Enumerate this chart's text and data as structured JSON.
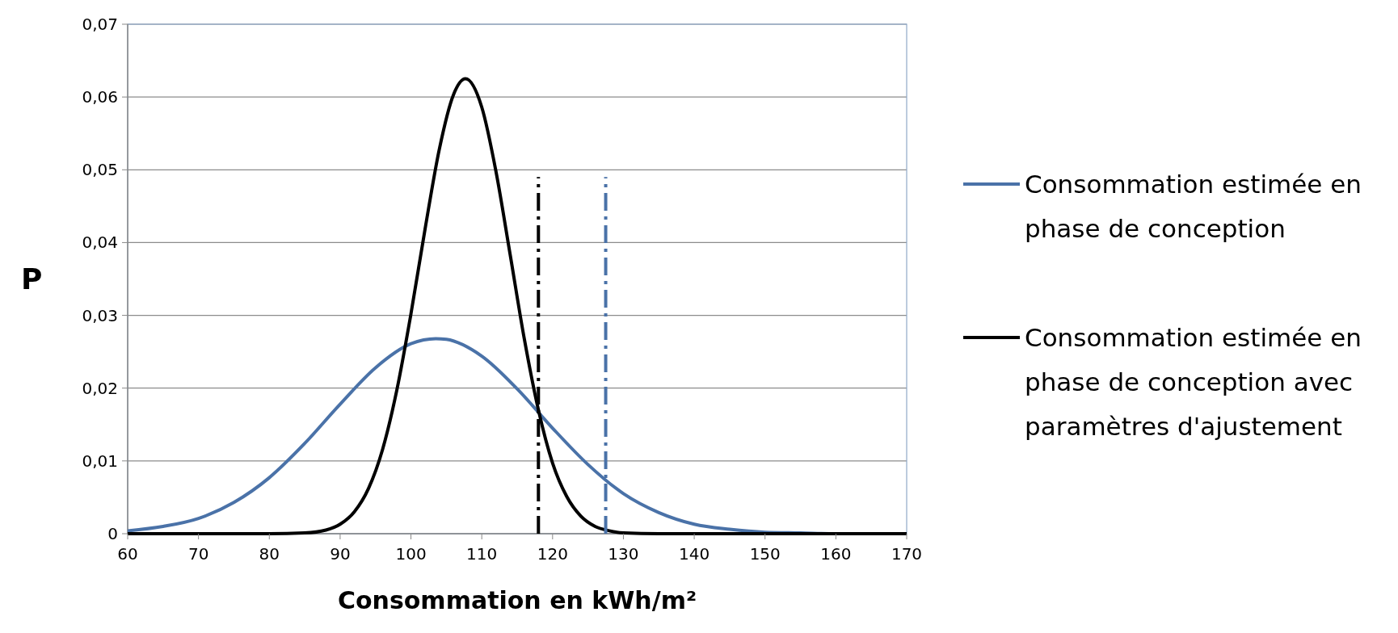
{
  "chart_data": {
    "type": "line",
    "xlabel": "Consommation en kWh/m²",
    "ylabel": "P",
    "xlim": [
      60,
      170
    ],
    "xticks": [
      60,
      70,
      80,
      90,
      100,
      110,
      120,
      130,
      140,
      150,
      160,
      170
    ],
    "ylim": [
      0,
      0.07
    ],
    "yticks": [
      {
        "value": 0,
        "label": "0"
      },
      {
        "value": 0.01,
        "label": "0,01"
      },
      {
        "value": 0.02,
        "label": "0,02"
      },
      {
        "value": 0.03,
        "label": "0,03"
      },
      {
        "value": 0.04,
        "label": "0,04"
      },
      {
        "value": 0.05,
        "label": "0,05"
      },
      {
        "value": 0.06,
        "label": "0,06"
      },
      {
        "value": 0.07,
        "label": "0,07"
      }
    ],
    "grid": "y",
    "legend": "right",
    "series": [
      {
        "name": "Consommation estimée en phase de conception",
        "color": "#4a72a8",
        "line_style": "solid",
        "x": [
          60,
          65,
          70,
          75,
          80,
          85,
          90,
          95,
          100,
          103.5,
          105,
          110,
          115,
          120,
          125,
          130,
          135,
          140,
          145,
          150,
          155,
          160,
          170
        ],
        "values": [
          0.0004,
          0.001,
          0.0021,
          0.0043,
          0.0077,
          0.0124,
          0.0178,
          0.0228,
          0.0261,
          0.0268,
          0.0267,
          0.0244,
          0.0199,
          0.0145,
          0.0095,
          0.0055,
          0.0029,
          0.0013,
          0.0006,
          0.0002,
          0.0001,
          0,
          0
        ]
      },
      {
        "name": "Consommation estimée en phase de conception avec paramètres d'ajustement",
        "color": "#000000",
        "line_style": "solid",
        "x": [
          60,
          80,
          85,
          88,
          90,
          92,
          94,
          96,
          98,
          100,
          102,
          104,
          106,
          107.7,
          110,
          112,
          114,
          116,
          118,
          120,
          122,
          124,
          126,
          128,
          130,
          135,
          170
        ],
        "values": [
          0,
          0,
          0.0001,
          0.0005,
          0.0013,
          0.003,
          0.0062,
          0.0116,
          0.0197,
          0.0302,
          0.0419,
          0.0528,
          0.0603,
          0.0625,
          0.0586,
          0.0498,
          0.0384,
          0.0268,
          0.017,
          0.0097,
          0.0051,
          0.0024,
          0.001,
          0.0004,
          0.0001,
          0,
          0
        ]
      },
      {
        "color": "#000000",
        "line_style": "dashed",
        "x": [
          118,
          118
        ],
        "values": [
          0,
          0.049
        ]
      },
      {
        "color": "#4a72a8",
        "line_style": "dashed",
        "x": [
          127.5,
          127.5
        ],
        "values": [
          0,
          0.049
        ]
      }
    ]
  }
}
